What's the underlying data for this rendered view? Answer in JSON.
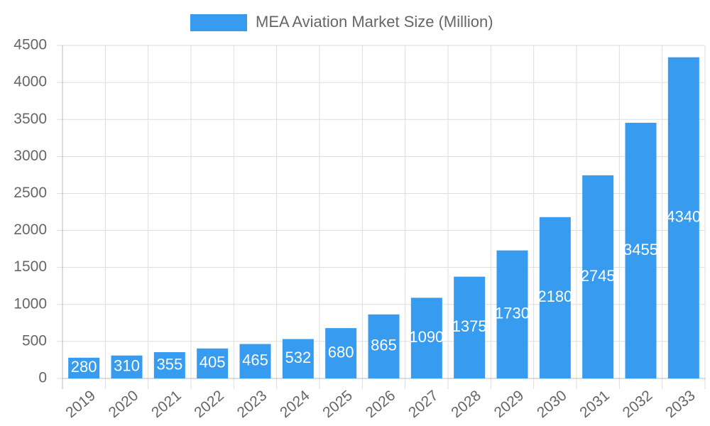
{
  "chart_data": {
    "type": "bar",
    "categories": [
      "2019",
      "2020",
      "2021",
      "2022",
      "2023",
      "2024",
      "2025",
      "2026",
      "2027",
      "2028",
      "2029",
      "2030",
      "2031",
      "2032",
      "2033"
    ],
    "series": [
      {
        "name": "MEA Aviation Market Size (Million)",
        "color": "#379bf0",
        "values": [
          280,
          310,
          355,
          405,
          465,
          532,
          680,
          865,
          1090,
          1375,
          1730,
          2180,
          2745,
          3455,
          4340
        ]
      }
    ],
    "ylim": [
      0,
      4500
    ],
    "yticks": [
      0,
      500,
      1000,
      1500,
      2000,
      2500,
      3000,
      3500,
      4000,
      4500
    ],
    "grid": true,
    "legend": "top"
  }
}
